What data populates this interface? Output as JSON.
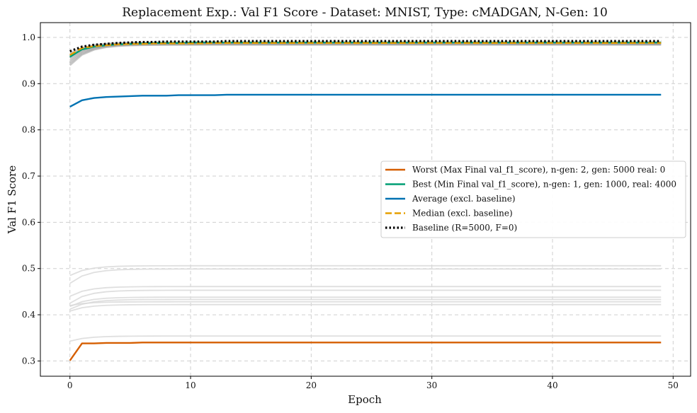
{
  "chart_data": {
    "type": "line",
    "title": "Replacement Exp.: Val F1 Score - Dataset: MNIST, Type: cMADGAN, N-Gen: 10",
    "xlabel": "Epoch",
    "ylabel": "Val F1 Score",
    "xlim": [
      -2.45,
      51.45
    ],
    "ylim": [
      0.267,
      1.032
    ],
    "xticks": [
      0,
      10,
      20,
      30,
      40,
      50
    ],
    "yticks": [
      0.3,
      0.4,
      0.5,
      0.6,
      0.7,
      0.8,
      0.9,
      1.0
    ],
    "grid": true,
    "legend_position": "center-right",
    "epochs_max": 49,
    "series": [
      {
        "name": "Worst (Max Final val_f1_score), n-gen: 2, gen: 5000 real: 0",
        "color": "#d55e00",
        "style": "solid",
        "values": [
          0.301,
          0.338,
          0.338,
          0.339,
          0.339,
          0.339,
          0.34,
          0.34,
          0.34,
          0.34,
          0.34,
          0.34,
          0.34,
          0.34,
          0.34,
          0.34,
          0.34,
          0.34,
          0.34,
          0.34,
          0.34,
          0.34,
          0.34,
          0.34,
          0.34,
          0.34,
          0.34,
          0.34,
          0.34,
          0.34,
          0.34,
          0.34,
          0.34,
          0.34,
          0.34,
          0.34,
          0.34,
          0.34,
          0.34,
          0.34,
          0.34,
          0.34,
          0.34,
          0.34,
          0.34,
          0.34,
          0.34,
          0.34,
          0.34,
          0.34
        ]
      },
      {
        "name": "Best (Min Final val_f1_score), n-gen: 1, gen: 1000, real: 4000",
        "color": "#009e73",
        "style": "solid",
        "values": [
          0.958,
          0.974,
          0.98,
          0.983,
          0.985,
          0.986,
          0.987,
          0.988,
          0.988,
          0.988,
          0.989,
          0.989,
          0.989,
          0.989,
          0.989,
          0.989,
          0.989,
          0.989,
          0.989,
          0.989,
          0.989,
          0.989,
          0.989,
          0.989,
          0.989,
          0.989,
          0.989,
          0.989,
          0.989,
          0.989,
          0.989,
          0.989,
          0.989,
          0.989,
          0.989,
          0.989,
          0.989,
          0.989,
          0.989,
          0.989,
          0.989,
          0.989,
          0.989,
          0.989,
          0.989,
          0.989,
          0.989,
          0.989,
          0.989,
          0.989
        ]
      },
      {
        "name": "Average (excl. baseline)",
        "color": "#0072b2",
        "style": "solid",
        "values": [
          0.85,
          0.864,
          0.869,
          0.871,
          0.872,
          0.873,
          0.874,
          0.874,
          0.874,
          0.875,
          0.875,
          0.875,
          0.875,
          0.876,
          0.876,
          0.876,
          0.876,
          0.876,
          0.876,
          0.876,
          0.876,
          0.876,
          0.876,
          0.876,
          0.876,
          0.876,
          0.876,
          0.876,
          0.876,
          0.876,
          0.876,
          0.876,
          0.876,
          0.876,
          0.876,
          0.876,
          0.876,
          0.876,
          0.876,
          0.876,
          0.876,
          0.876,
          0.876,
          0.876,
          0.876,
          0.876,
          0.876,
          0.876,
          0.876,
          0.876
        ]
      },
      {
        "name": "Median (excl. baseline)",
        "color": "#e69f00",
        "style": "dashed",
        "values": [
          0.962,
          0.977,
          0.981,
          0.983,
          0.985,
          0.986,
          0.986,
          0.987,
          0.987,
          0.987,
          0.987,
          0.987,
          0.988,
          0.988,
          0.988,
          0.988,
          0.988,
          0.988,
          0.988,
          0.988,
          0.988,
          0.988,
          0.988,
          0.988,
          0.988,
          0.988,
          0.988,
          0.988,
          0.988,
          0.988,
          0.988,
          0.988,
          0.988,
          0.988,
          0.988,
          0.988,
          0.988,
          0.988,
          0.988,
          0.988,
          0.988,
          0.988,
          0.988,
          0.988,
          0.988,
          0.988,
          0.988,
          0.988,
          0.988,
          0.988
        ]
      },
      {
        "name": "Baseline (R=5000, F=0)",
        "color": "#000000",
        "style": "dotted",
        "values": [
          0.97,
          0.98,
          0.984,
          0.986,
          0.988,
          0.989,
          0.99,
          0.99,
          0.991,
          0.991,
          0.991,
          0.991,
          0.991,
          0.992,
          0.992,
          0.992,
          0.992,
          0.992,
          0.992,
          0.992,
          0.992,
          0.992,
          0.992,
          0.992,
          0.992,
          0.992,
          0.992,
          0.992,
          0.992,
          0.992,
          0.992,
          0.992,
          0.992,
          0.992,
          0.992,
          0.992,
          0.992,
          0.992,
          0.992,
          0.992,
          0.992,
          0.992,
          0.992,
          0.992,
          0.992,
          0.992,
          0.992,
          0.992,
          0.992,
          0.992
        ]
      }
    ],
    "background_runs": {
      "high": [
        {
          "start": 0.94,
          "end": 0.984
        },
        {
          "start": 0.945,
          "end": 0.985
        },
        {
          "start": 0.95,
          "end": 0.986
        },
        {
          "start": 0.955,
          "end": 0.987
        },
        {
          "start": 0.96,
          "end": 0.988
        },
        {
          "start": 0.965,
          "end": 0.989
        }
      ],
      "low": [
        {
          "start": 0.485,
          "end": 0.506
        },
        {
          "start": 0.468,
          "end": 0.499
        },
        {
          "start": 0.44,
          "end": 0.461
        },
        {
          "start": 0.425,
          "end": 0.453
        },
        {
          "start": 0.418,
          "end": 0.438
        },
        {
          "start": 0.412,
          "end": 0.433
        },
        {
          "start": 0.42,
          "end": 0.428
        },
        {
          "start": 0.408,
          "end": 0.422
        },
        {
          "start": 0.343,
          "end": 0.354
        }
      ],
      "colors": {
        "high": "#999999",
        "low": "#d9d9d9"
      }
    }
  }
}
